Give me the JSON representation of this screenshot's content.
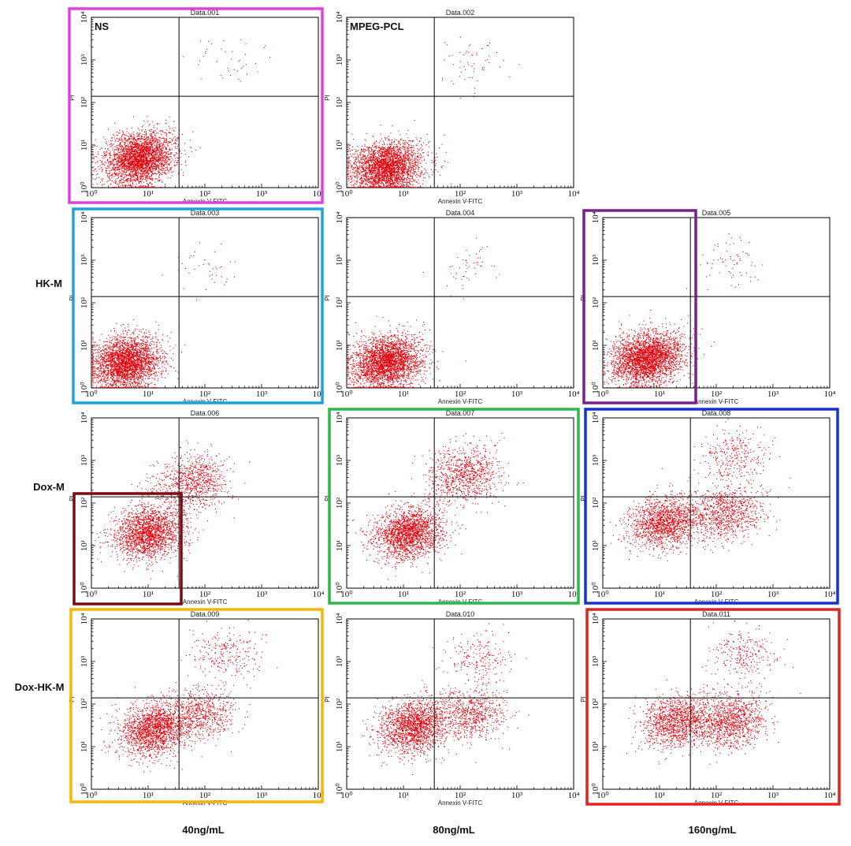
{
  "figure": {
    "row_labels": [
      "HK-M",
      "Dox-M",
      "Dox-HK-M"
    ],
    "column_labels": [
      "40ng/mL",
      "80ng/mL",
      "160ng/mL"
    ],
    "highlight_colors": {
      "magenta": "#e040e0",
      "cyan": "#1aa3e0",
      "purple": "#7a1f8c",
      "dark_red": "#7a0a14",
      "green": "#2db84a",
      "blue": "#1530d8",
      "gold": "#f7b500",
      "red": "#e32222"
    }
  },
  "chart_data": [
    {
      "type": "scatter",
      "title": "Data.001",
      "label": "NS",
      "xlabel": "Annexin V-FITC",
      "ylabel": "PI",
      "xscale": "log",
      "yscale": "log",
      "xlim": [
        1,
        10000
      ],
      "ylim": [
        1,
        10000
      ],
      "tick_labels": [
        "10⁰",
        "10¹",
        "10²",
        "10³",
        "10⁴"
      ],
      "quadrant_gate": {
        "x": 35,
        "y": 140
      },
      "color": "#e0000a",
      "frame": "magenta",
      "clusters": [
        {
          "x": 7,
          "y": 5,
          "n": 3000
        },
        {
          "x": 250,
          "y": 1000,
          "n": 40
        }
      ]
    },
    {
      "type": "scatter",
      "title": "Data.002",
      "label": "MPEG-PCL",
      "xlabel": "Annexin V-FITC",
      "ylabel": "PI",
      "xscale": "log",
      "yscale": "log",
      "xlim": [
        1,
        10000
      ],
      "ylim": [
        1,
        10000
      ],
      "tick_labels": [
        "10⁰",
        "10¹",
        "10²",
        "10³",
        "10⁴"
      ],
      "quadrant_gate": {
        "x": 35,
        "y": 140
      },
      "color": "#e0000a",
      "frame": "",
      "clusters": [
        {
          "x": 5,
          "y": 3,
          "n": 3000
        },
        {
          "x": 150,
          "y": 700,
          "n": 60
        }
      ]
    },
    {
      "type": "scatter",
      "title": "Data.003",
      "xlabel": "Annexin V-FITC",
      "ylabel": "PI",
      "xscale": "log",
      "yscale": "log",
      "xlim": [
        1,
        10000
      ],
      "ylim": [
        1,
        10000
      ],
      "tick_labels": [
        "10⁰",
        "10¹",
        "10²",
        "10³",
        "10⁴"
      ],
      "quadrant_gate": {
        "x": 35,
        "y": 140
      },
      "color": "#e0000a",
      "frame": "cyan",
      "clusters": [
        {
          "x": 4,
          "y": 4,
          "n": 3000
        },
        {
          "x": 120,
          "y": 600,
          "n": 40
        }
      ]
    },
    {
      "type": "scatter",
      "title": "Data.004",
      "xlabel": "Annexin V-FITC",
      "ylabel": "PI",
      "xscale": "log",
      "yscale": "log",
      "xlim": [
        1,
        10000
      ],
      "ylim": [
        1,
        10000
      ],
      "tick_labels": [
        "10⁰",
        "10¹",
        "10²",
        "10³",
        "10⁴"
      ],
      "quadrant_gate": {
        "x": 35,
        "y": 140
      },
      "color": "#e0000a",
      "frame": "",
      "clusters": [
        {
          "x": 5,
          "y": 4,
          "n": 3000
        },
        {
          "x": 120,
          "y": 700,
          "n": 50
        }
      ]
    },
    {
      "type": "scatter",
      "title": "Data.005",
      "xlabel": "Annexin V-FITC",
      "ylabel": "PI",
      "xscale": "log",
      "yscale": "log",
      "xlim": [
        1,
        10000
      ],
      "ylim": [
        1,
        10000
      ],
      "tick_labels": [
        "10⁰",
        "10¹",
        "10²",
        "10³",
        "10⁴"
      ],
      "quadrant_gate": {
        "x": 35,
        "y": 140
      },
      "color": "#e0000a",
      "frame": "purple",
      "clusters": [
        {
          "x": 6,
          "y": 5,
          "n": 3000
        },
        {
          "x": 150,
          "y": 900,
          "n": 70
        }
      ]
    },
    {
      "type": "scatter",
      "title": "Data.006",
      "xlabel": "Annexin V-FITC",
      "ylabel": "PI",
      "xscale": "log",
      "yscale": "log",
      "xlim": [
        1,
        10000
      ],
      "ylim": [
        1,
        10000
      ],
      "tick_labels": [
        "10⁰",
        "10¹",
        "10²",
        "10³",
        "10⁴"
      ],
      "quadrant_gate": {
        "x": 35,
        "y": 140
      },
      "color": "#e0000a",
      "frame": "",
      "clusters": [
        {
          "x": 10,
          "y": 20,
          "n": 2000
        },
        {
          "x": 60,
          "y": 300,
          "n": 900
        }
      ]
    },
    {
      "type": "scatter",
      "title": "Data.007",
      "xlabel": "Annexin V-FITC",
      "ylabel": "PI",
      "xscale": "log",
      "yscale": "log",
      "xlim": [
        1,
        10000
      ],
      "ylim": [
        1,
        10000
      ],
      "tick_labels": [
        "10⁰",
        "10¹",
        "10²",
        "10³",
        "10⁴"
      ],
      "quadrant_gate": {
        "x": 35,
        "y": 140
      },
      "color": "#e0000a",
      "frame": "green",
      "clusters": [
        {
          "x": 12,
          "y": 20,
          "n": 2000
        },
        {
          "x": 120,
          "y": 500,
          "n": 900
        }
      ]
    },
    {
      "type": "scatter",
      "title": "Data.008",
      "xlabel": "Annexin V-FITC",
      "ylabel": "PI",
      "xscale": "log",
      "yscale": "log",
      "xlim": [
        1,
        10000
      ],
      "ylim": [
        1,
        10000
      ],
      "tick_labels": [
        "10⁰",
        "10¹",
        "10²",
        "10³",
        "10⁴"
      ],
      "quadrant_gate": {
        "x": 35,
        "y": 140
      },
      "color": "#e0000a",
      "frame": "blue",
      "clusters": [
        {
          "x": 12,
          "y": 35,
          "n": 1600
        },
        {
          "x": 150,
          "y": 60,
          "n": 900
        },
        {
          "x": 200,
          "y": 1200,
          "n": 300
        }
      ]
    },
    {
      "type": "scatter",
      "title": "Data.009",
      "xlabel": "Annexin V-FITC",
      "ylabel": "PI",
      "xscale": "log",
      "yscale": "log",
      "xlim": [
        1,
        10000
      ],
      "ylim": [
        1,
        10000
      ],
      "tick_labels": [
        "10⁰",
        "10¹",
        "10²",
        "10³",
        "10⁴"
      ],
      "quadrant_gate": {
        "x": 35,
        "y": 140
      },
      "color": "#e0000a",
      "frame": "gold",
      "clusters": [
        {
          "x": 12,
          "y": 25,
          "n": 1800
        },
        {
          "x": 80,
          "y": 60,
          "n": 700
        },
        {
          "x": 250,
          "y": 1500,
          "n": 250
        }
      ]
    },
    {
      "type": "scatter",
      "title": "Data.010",
      "xlabel": "Annexin V-FITC",
      "ylabel": "PI",
      "xscale": "log",
      "yscale": "log",
      "xlim": [
        1,
        10000
      ],
      "ylim": [
        1,
        10000
      ],
      "tick_labels": [
        "10⁰",
        "10¹",
        "10²",
        "10³",
        "10⁴"
      ],
      "quadrant_gate": {
        "x": 35,
        "y": 140
      },
      "color": "#e0000a",
      "frame": "",
      "clusters": [
        {
          "x": 15,
          "y": 30,
          "n": 1800
        },
        {
          "x": 150,
          "y": 60,
          "n": 700
        },
        {
          "x": 200,
          "y": 1200,
          "n": 200
        }
      ]
    },
    {
      "type": "scatter",
      "title": "Data.011",
      "xlabel": "Annexin V-FITC",
      "ylabel": "PI",
      "xscale": "log",
      "yscale": "log",
      "xlim": [
        1,
        10000
      ],
      "ylim": [
        1,
        10000
      ],
      "tick_labels": [
        "10⁰",
        "10¹",
        "10²",
        "10³",
        "10⁴"
      ],
      "quadrant_gate": {
        "x": 35,
        "y": 140
      },
      "color": "#e0000a",
      "frame": "red",
      "clusters": [
        {
          "x": 20,
          "y": 40,
          "n": 1300
        },
        {
          "x": 180,
          "y": 40,
          "n": 1100
        },
        {
          "x": 300,
          "y": 1500,
          "n": 250
        }
      ]
    }
  ]
}
